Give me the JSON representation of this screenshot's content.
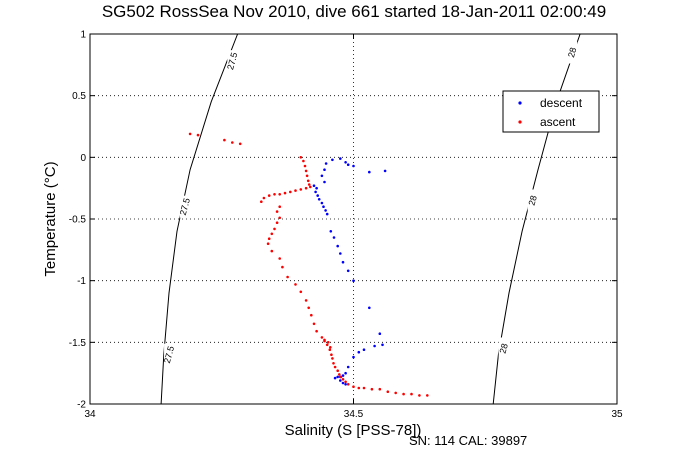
{
  "chart_data": {
    "type": "scatter",
    "title": "SG502 RossSea Nov 2010, dive 661 started 18-Jan-2011 02:00:49",
    "xlabel": "Salinity (S [PSS-78])",
    "ylabel": "Temperature (°C)",
    "xlim": [
      34,
      35
    ],
    "ylim": [
      -2,
      1
    ],
    "x_ticks": [
      34,
      34.5,
      35
    ],
    "x_tick_labels": [
      "34",
      "34.5",
      "35"
    ],
    "y_ticks": [
      -2,
      -1.5,
      -1,
      -0.5,
      0,
      0.5,
      1
    ],
    "y_tick_labels": [
      "-2",
      "-1.5",
      "-1",
      "-0.5",
      "0",
      "0.5",
      "1"
    ],
    "grid": true,
    "legend_position": "top-right",
    "series": [
      {
        "name": "descent",
        "color": "#0000ff",
        "points": [
          [
            34.425,
            -0.23
          ],
          [
            34.43,
            -0.25
          ],
          [
            34.428,
            -0.28
          ],
          [
            34.432,
            -0.31
          ],
          [
            34.435,
            -0.34
          ],
          [
            34.44,
            -0.37
          ],
          [
            34.443,
            -0.4
          ],
          [
            34.447,
            -0.43
          ],
          [
            34.45,
            -0.46
          ],
          [
            34.445,
            -0.2
          ],
          [
            34.44,
            -0.15
          ],
          [
            34.445,
            -0.1
          ],
          [
            34.448,
            -0.05
          ],
          [
            34.46,
            -0.02
          ],
          [
            34.475,
            -0.01
          ],
          [
            34.485,
            -0.04
          ],
          [
            34.49,
            -0.06
          ],
          [
            34.5,
            -0.07
          ],
          [
            34.53,
            -0.12
          ],
          [
            34.56,
            -0.11
          ],
          [
            34.457,
            -0.6
          ],
          [
            34.463,
            -0.65
          ],
          [
            34.47,
            -0.72
          ],
          [
            34.475,
            -0.78
          ],
          [
            34.48,
            -0.85
          ],
          [
            34.49,
            -0.92
          ],
          [
            34.5,
            -1.0
          ],
          [
            34.53,
            -1.22
          ],
          [
            34.55,
            -1.43
          ],
          [
            34.555,
            -1.52
          ],
          [
            34.54,
            -1.53
          ],
          [
            34.52,
            -1.56
          ],
          [
            34.51,
            -1.58
          ],
          [
            34.5,
            -1.62
          ],
          [
            34.49,
            -1.7
          ],
          [
            34.485,
            -1.75
          ],
          [
            34.48,
            -1.77
          ],
          [
            34.475,
            -1.78
          ],
          [
            34.47,
            -1.78
          ],
          [
            34.465,
            -1.79
          ],
          [
            34.475,
            -1.81
          ],
          [
            34.48,
            -1.83
          ],
          [
            34.485,
            -1.84
          ]
        ]
      },
      {
        "name": "ascent",
        "color": "#ff0000",
        "points": [
          [
            34.19,
            0.19
          ],
          [
            34.205,
            0.18
          ],
          [
            34.255,
            0.14
          ],
          [
            34.27,
            0.12
          ],
          [
            34.285,
            0.11
          ],
          [
            34.4,
            0.0
          ],
          [
            34.405,
            -0.03
          ],
          [
            34.408,
            -0.07
          ],
          [
            34.41,
            -0.11
          ],
          [
            34.412,
            -0.15
          ],
          [
            34.414,
            -0.19
          ],
          [
            34.416,
            -0.22
          ],
          [
            34.418,
            -0.24
          ],
          [
            34.41,
            -0.25
          ],
          [
            34.4,
            -0.26
          ],
          [
            34.39,
            -0.27
          ],
          [
            34.38,
            -0.28
          ],
          [
            34.37,
            -0.29
          ],
          [
            34.36,
            -0.3
          ],
          [
            34.35,
            -0.3
          ],
          [
            34.34,
            -0.31
          ],
          [
            34.33,
            -0.33
          ],
          [
            34.325,
            -0.36
          ],
          [
            34.36,
            -0.4
          ],
          [
            34.355,
            -0.44
          ],
          [
            34.36,
            -0.49
          ],
          [
            34.355,
            -0.53
          ],
          [
            34.35,
            -0.58
          ],
          [
            34.345,
            -0.62
          ],
          [
            34.34,
            -0.66
          ],
          [
            34.338,
            -0.7
          ],
          [
            34.345,
            -0.76
          ],
          [
            34.36,
            -0.82
          ],
          [
            34.365,
            -0.89
          ],
          [
            34.375,
            -0.97
          ],
          [
            34.39,
            -1.03
          ],
          [
            34.4,
            -1.09
          ],
          [
            34.41,
            -1.16
          ],
          [
            34.415,
            -1.22
          ],
          [
            34.42,
            -1.28
          ],
          [
            34.425,
            -1.35
          ],
          [
            34.43,
            -1.41
          ],
          [
            34.44,
            -1.46
          ],
          [
            34.445,
            -1.49
          ],
          [
            34.45,
            -1.52
          ],
          [
            34.455,
            -1.56
          ],
          [
            34.458,
            -1.6
          ],
          [
            34.46,
            -1.63
          ],
          [
            34.462,
            -1.67
          ],
          [
            34.465,
            -1.7
          ],
          [
            34.47,
            -1.73
          ],
          [
            34.473,
            -1.76
          ],
          [
            34.476,
            -1.78
          ],
          [
            34.48,
            -1.8
          ],
          [
            34.485,
            -1.82
          ],
          [
            34.49,
            -1.84
          ],
          [
            34.5,
            -1.86
          ],
          [
            34.51,
            -1.87
          ],
          [
            34.52,
            -1.87
          ],
          [
            34.535,
            -1.88
          ],
          [
            34.55,
            -1.88
          ],
          [
            34.565,
            -1.9
          ],
          [
            34.58,
            -1.91
          ],
          [
            34.595,
            -1.92
          ],
          [
            34.61,
            -1.92
          ],
          [
            34.625,
            -1.93
          ],
          [
            34.64,
            -1.93
          ],
          [
            34.445,
            -1.48
          ],
          [
            34.452,
            -1.5
          ],
          [
            34.456,
            -1.54
          ]
        ]
      }
    ],
    "contours": [
      {
        "label": "27.5",
        "points": [
          [
            34.28,
            1.0
          ],
          [
            34.23,
            0.45
          ],
          [
            34.19,
            -0.1
          ],
          [
            34.165,
            -0.6
          ],
          [
            34.15,
            -1.1
          ],
          [
            34.14,
            -1.6
          ],
          [
            34.135,
            -2.0
          ]
        ]
      },
      {
        "label": "28",
        "points": [
          [
            34.93,
            1.0
          ],
          [
            34.885,
            0.45
          ],
          [
            34.85,
            -0.1
          ],
          [
            34.82,
            -0.6
          ],
          [
            34.795,
            -1.1
          ],
          [
            34.775,
            -1.6
          ],
          [
            34.765,
            -2.0
          ]
        ]
      }
    ],
    "contour_label_positions": [
      {
        "label": "27.5",
        "x": 34.27,
        "y": 0.78
      },
      {
        "label": "27.5",
        "x": 34.18,
        "y": -0.4
      },
      {
        "label": "27.5",
        "x": 34.15,
        "y": -1.6
      },
      {
        "label": "28",
        "x": 34.915,
        "y": 0.85
      },
      {
        "label": "28",
        "x": 34.84,
        "y": -0.35
      },
      {
        "label": "28",
        "x": 34.785,
        "y": -1.55
      }
    ],
    "footer": "SN: 114  CAL: 39897"
  }
}
